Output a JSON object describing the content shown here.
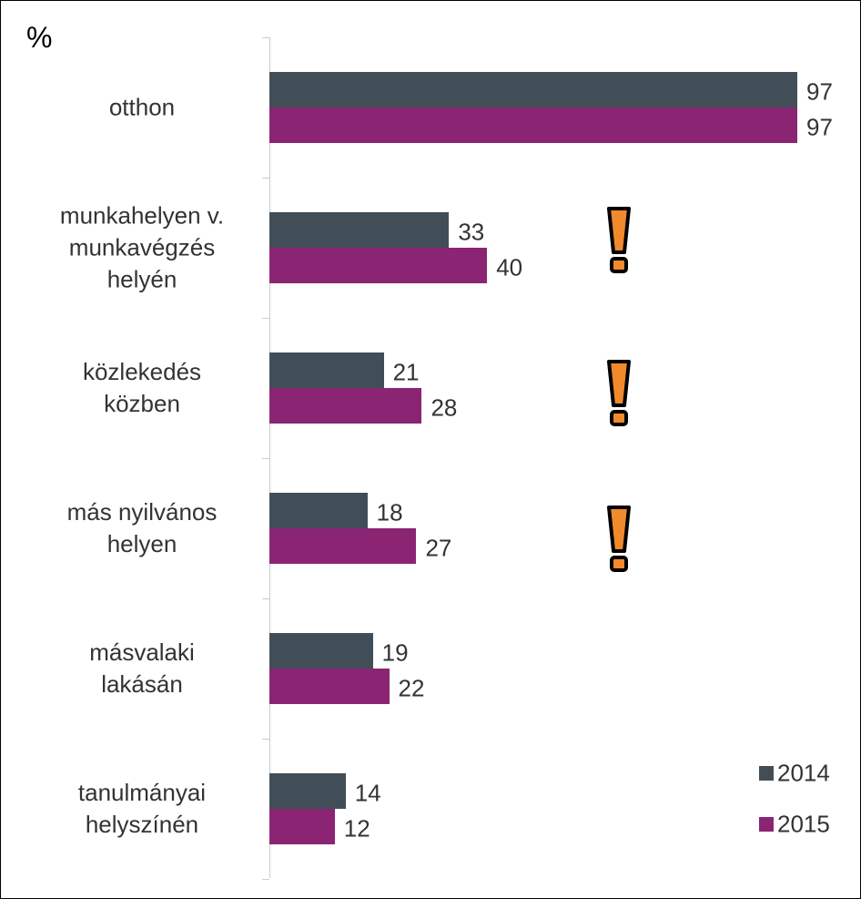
{
  "chart_data": {
    "type": "bar",
    "orientation": "horizontal",
    "unit_label": "%",
    "categories": [
      "otthon",
      "munkahelyen v.\nmunkavégzés\nhelyén",
      "közlekedés\nközben",
      "más nyilvános\nhelyen",
      "másvalaki\nlakásán",
      "tanulmányai\nhelyszínén"
    ],
    "series": [
      {
        "name": "2014",
        "color": "#424e57",
        "values": [
          97,
          33,
          21,
          18,
          19,
          14
        ]
      },
      {
        "name": "2015",
        "color": "#8b2473",
        "values": [
          97,
          40,
          28,
          27,
          22,
          12
        ]
      }
    ],
    "xlim": [
      0,
      100
    ],
    "legend": "lower right"
  }
}
